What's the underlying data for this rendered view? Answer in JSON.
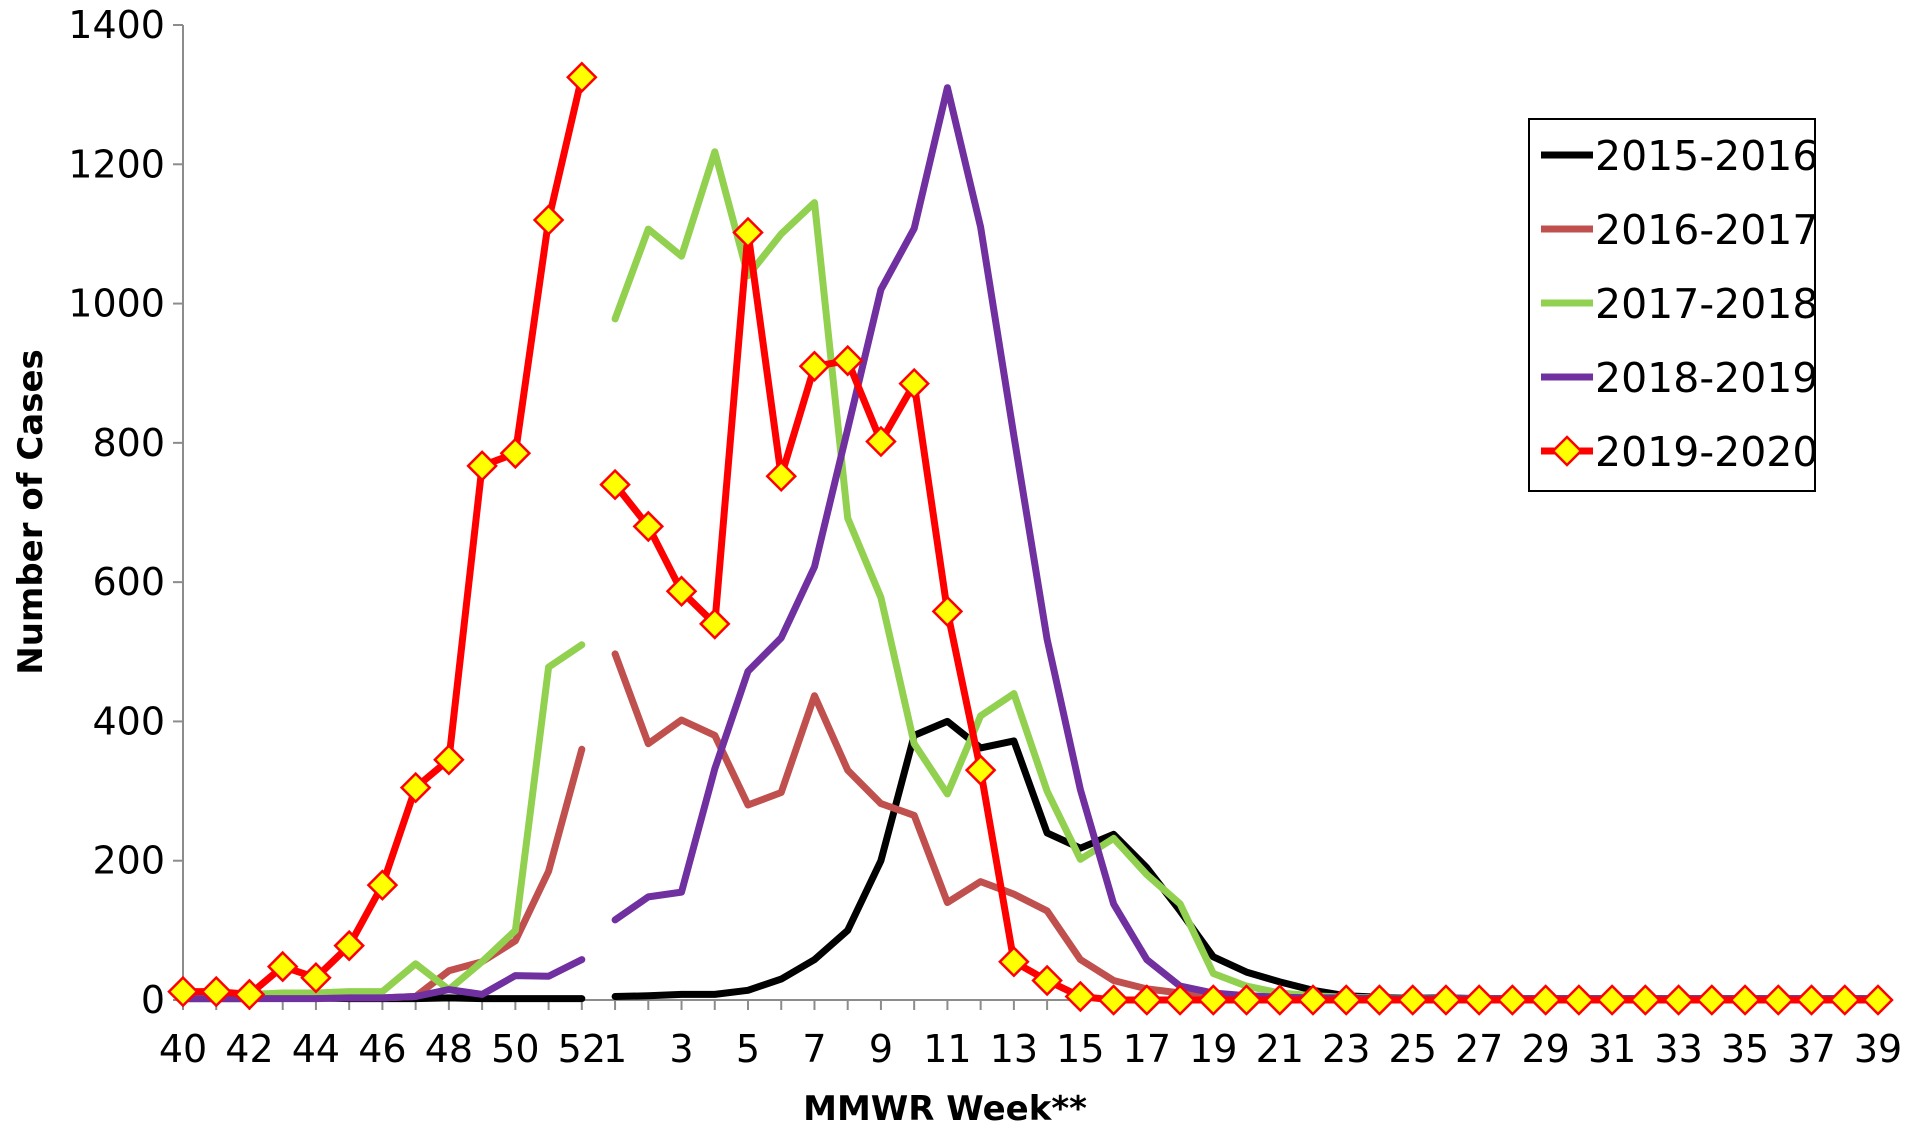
{
  "chart_data": {
    "type": "line",
    "title": "",
    "xlabel": "MMWR Week**",
    "ylabel": "Number of Cases",
    "ylim": [
      0,
      1400
    ],
    "yticks": [
      0,
      200,
      400,
      600,
      800,
      1000,
      1200,
      1400
    ],
    "grid": false,
    "legend_placement": "top-right",
    "x_weeks": [
      40,
      41,
      42,
      43,
      44,
      45,
      46,
      47,
      48,
      49,
      50,
      51,
      52,
      1,
      2,
      3,
      4,
      5,
      6,
      7,
      8,
      9,
      10,
      11,
      12,
      13,
      14,
      15,
      16,
      17,
      18,
      19,
      20,
      21,
      22,
      23,
      24,
      25,
      26,
      27,
      28,
      29,
      30,
      31,
      32,
      33,
      34,
      35,
      36,
      37,
      38,
      39
    ],
    "x_tick_labels": [
      "40",
      "42",
      "44",
      "46",
      "48",
      "50",
      "52",
      "1",
      "3",
      "5",
      "7",
      "9",
      "11",
      "13",
      "15",
      "17",
      "19",
      "21",
      "23",
      "25",
      "27",
      "29",
      "31",
      "33",
      "35",
      "37",
      "39"
    ],
    "x_tick_weeks": [
      40,
      42,
      44,
      46,
      48,
      50,
      52,
      1,
      3,
      5,
      7,
      9,
      11,
      13,
      15,
      17,
      19,
      21,
      23,
      25,
      27,
      29,
      31,
      33,
      35,
      37,
      39
    ],
    "gap_after_week": 52,
    "series": [
      {
        "name": "2015-2016",
        "color": "#000000",
        "marker": "none",
        "values": [
          2,
          2,
          2,
          3,
          3,
          2,
          2,
          2,
          3,
          2,
          2,
          2,
          2,
          5,
          6,
          8,
          8,
          14,
          30,
          58,
          100,
          200,
          380,
          400,
          362,
          372,
          240,
          218,
          238,
          190,
          128,
          62,
          40,
          26,
          14,
          6,
          4,
          3,
          3,
          2,
          2,
          2,
          2,
          2,
          2,
          2,
          2,
          2,
          2,
          2,
          2,
          2
        ]
      },
      {
        "name": "2016-2017",
        "color": "#C0504D",
        "marker": "none",
        "values": [
          3,
          3,
          3,
          3,
          3,
          3,
          3,
          5,
          42,
          55,
          85,
          185,
          360,
          497,
          368,
          402,
          380,
          280,
          298,
          437,
          330,
          282,
          265,
          140,
          170,
          152,
          128,
          58,
          28,
          16,
          10,
          8,
          6,
          4,
          3,
          3,
          2,
          2,
          2,
          2,
          2,
          2,
          2,
          2,
          2,
          2,
          2,
          2,
          2,
          2,
          2,
          2
        ]
      },
      {
        "name": "2017-2018",
        "color": "#92D050",
        "marker": "none",
        "values": [
          8,
          8,
          8,
          10,
          10,
          12,
          12,
          52,
          15,
          55,
          100,
          478,
          510,
          978,
          1107,
          1068,
          1218,
          1040,
          1100,
          1145,
          692,
          578,
          368,
          296,
          408,
          440,
          300,
          202,
          232,
          180,
          138,
          38,
          20,
          10,
          6,
          4,
          3,
          3,
          2,
          2,
          2,
          2,
          2,
          2,
          2,
          2,
          2,
          2,
          2,
          2,
          2,
          2
        ]
      },
      {
        "name": "2018-2019",
        "color": "#7030A0",
        "marker": "none",
        "values": [
          2,
          2,
          2,
          2,
          2,
          3,
          3,
          5,
          15,
          8,
          35,
          34,
          58,
          115,
          148,
          155,
          332,
          472,
          520,
          622,
          820,
          1020,
          1108,
          1310,
          1110,
          810,
          518,
          302,
          138,
          58,
          20,
          10,
          6,
          4,
          3,
          3,
          2,
          2,
          2,
          2,
          2,
          2,
          2,
          2,
          2,
          2,
          2,
          2,
          2,
          2,
          2,
          2
        ]
      },
      {
        "name": "2019-2020",
        "color": "#FF0000",
        "marker": "diamond",
        "marker_fill": "#FFFF00",
        "values": [
          12,
          12,
          8,
          48,
          32,
          78,
          165,
          305,
          345,
          767,
          785,
          1120,
          1325,
          740,
          680,
          587,
          540,
          1102,
          752,
          910,
          918,
          802,
          885,
          558,
          330,
          55,
          28,
          5,
          0,
          0,
          0,
          0,
          0,
          0,
          0,
          0,
          0,
          0,
          0,
          0,
          0,
          0,
          0,
          0,
          0,
          0,
          0,
          0,
          0,
          0,
          0,
          0
        ]
      }
    ]
  }
}
